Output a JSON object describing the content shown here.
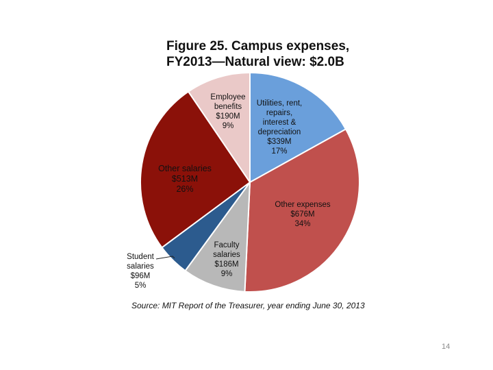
{
  "chart_data": {
    "type": "pie",
    "title_line1": "Figure 25. Campus expenses,",
    "title_line2": "FY2013—Natural view: $2.0B",
    "slices": [
      {
        "label_lines": [
          "Utilities, rent,",
          "repairs,",
          "interest &",
          "depreciation"
        ],
        "amount": "$339M",
        "percent": "17%",
        "value": 339,
        "color": "#6a9fdb"
      },
      {
        "label_lines": [
          "Other expenses"
        ],
        "amount": "$676M",
        "percent": "34%",
        "value": 676,
        "color": "#c0504d"
      },
      {
        "label_lines": [
          "Faculty",
          "salaries"
        ],
        "amount": "$186M",
        "percent": "9%",
        "value": 186,
        "color": "#b8b8b8"
      },
      {
        "label_lines": [
          "Student",
          "salaries"
        ],
        "amount": "$96M",
        "percent": "5%",
        "value": 96,
        "color": "#2c5b8e"
      },
      {
        "label_lines": [
          "Other salaries"
        ],
        "amount": "$513M",
        "percent": "26%",
        "value": 513,
        "color": "#8b1109"
      },
      {
        "label_lines": [
          "Employee",
          "benefits"
        ],
        "amount": "$190M",
        "percent": "9%",
        "value": 190,
        "color": "#eac9c8"
      }
    ],
    "source": "Source: MIT Report of the Treasurer, year ending June 30, 2013"
  },
  "page_number": "14"
}
